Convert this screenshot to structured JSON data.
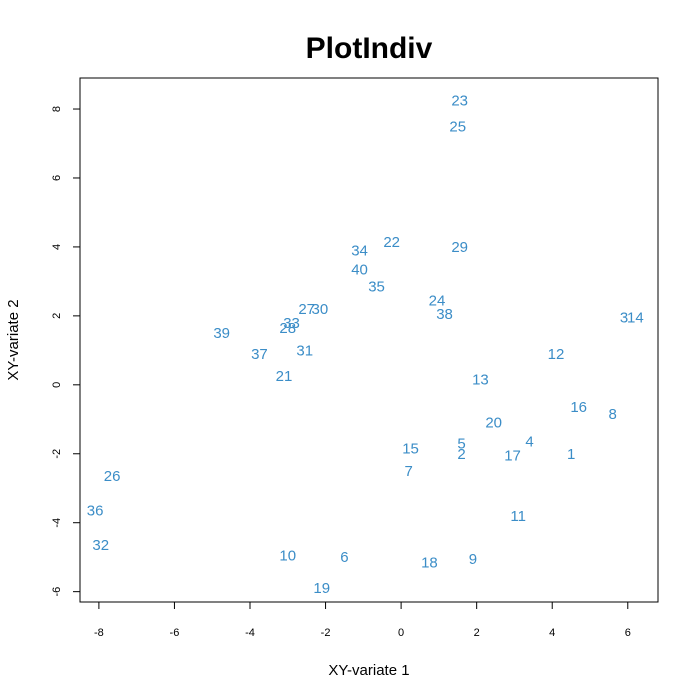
{
  "chart_data": {
    "type": "scatter",
    "title": "PlotIndiv",
    "xlabel": "XY-variate 1",
    "ylabel": "XY-variate 2",
    "xlim": [
      -8.5,
      6.8
    ],
    "ylim": [
      -6.3,
      8.9
    ],
    "xticks": [
      -8,
      -6,
      -4,
      -2,
      0,
      2,
      4,
      6
    ],
    "yticks": [
      -6,
      -4,
      -2,
      0,
      2,
      4,
      6,
      8
    ],
    "grid": false,
    "point_color": "#3b8dc7",
    "points": [
      {
        "label": "1",
        "x": 4.5,
        "y": -2.0
      },
      {
        "label": "2",
        "x": 1.6,
        "y": -2.0
      },
      {
        "label": "3",
        "x": 5.9,
        "y": 1.95
      },
      {
        "label": "4",
        "x": 3.4,
        "y": -1.65
      },
      {
        "label": "5",
        "x": 1.6,
        "y": -1.7
      },
      {
        "label": "6",
        "x": -1.5,
        "y": -5.0
      },
      {
        "label": "7",
        "x": 0.2,
        "y": -2.5
      },
      {
        "label": "8",
        "x": 5.6,
        "y": -0.85
      },
      {
        "label": "9",
        "x": 1.9,
        "y": -5.05
      },
      {
        "label": "10",
        "x": -3.0,
        "y": -4.95
      },
      {
        "label": "11",
        "x": 3.1,
        "y": -3.8
      },
      {
        "label": "12",
        "x": 4.1,
        "y": 0.9
      },
      {
        "label": "13",
        "x": 2.1,
        "y": 0.15
      },
      {
        "label": "14",
        "x": 6.2,
        "y": 1.95
      },
      {
        "label": "15",
        "x": 0.25,
        "y": -1.85
      },
      {
        "label": "16",
        "x": 4.7,
        "y": -0.65
      },
      {
        "label": "17",
        "x": 2.95,
        "y": -2.05
      },
      {
        "label": "18",
        "x": 0.75,
        "y": -5.15
      },
      {
        "label": "19",
        "x": -2.1,
        "y": -5.9
      },
      {
        "label": "20",
        "x": 2.45,
        "y": -1.1
      },
      {
        "label": "21",
        "x": -3.1,
        "y": 0.25
      },
      {
        "label": "22",
        "x": -0.25,
        "y": 4.15
      },
      {
        "label": "23",
        "x": 1.55,
        "y": 8.25
      },
      {
        "label": "24",
        "x": 0.95,
        "y": 2.45
      },
      {
        "label": "25",
        "x": 1.5,
        "y": 7.5
      },
      {
        "label": "26",
        "x": -7.65,
        "y": -2.65
      },
      {
        "label": "27",
        "x": -2.5,
        "y": 2.2
      },
      {
        "label": "28",
        "x": -3.0,
        "y": 1.65
      },
      {
        "label": "29",
        "x": 1.55,
        "y": 4.0
      },
      {
        "label": "30",
        "x": -2.15,
        "y": 2.2
      },
      {
        "label": "31",
        "x": -2.55,
        "y": 1.0
      },
      {
        "label": "32",
        "x": -7.95,
        "y": -4.65
      },
      {
        "label": "33",
        "x": -2.9,
        "y": 1.8
      },
      {
        "label": "34",
        "x": -1.1,
        "y": 3.9
      },
      {
        "label": "36",
        "x": -8.1,
        "y": -3.65
      },
      {
        "label": "37",
        "x": -3.75,
        "y": 0.9
      },
      {
        "label": "38",
        "x": 1.15,
        "y": 2.05
      },
      {
        "label": "39",
        "x": -4.75,
        "y": 1.5
      },
      {
        "label": "40",
        "x": -1.1,
        "y": 3.35
      },
      {
        "label": "35",
        "x": -0.65,
        "y": 2.85
      }
    ]
  }
}
